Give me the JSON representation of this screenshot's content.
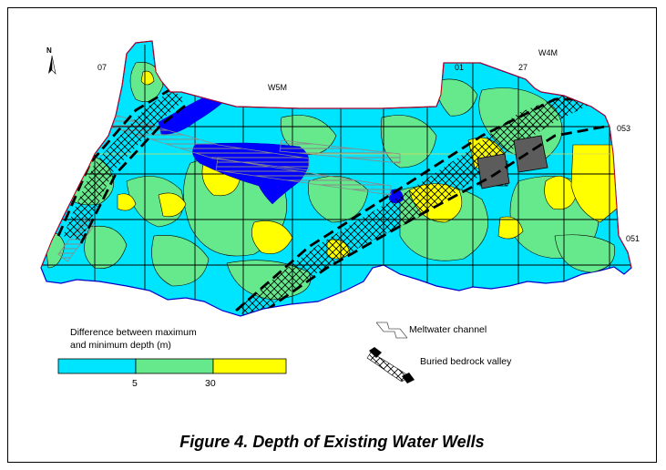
{
  "labels": {
    "north": "N",
    "range_w5m": "W5M",
    "range_w4m": "W4M",
    "range_07": "07",
    "range_01": "01",
    "range_27": "27",
    "twp_053": "053",
    "twp_051": "051"
  },
  "legend": {
    "depth_title_line1": "Difference between maximum",
    "depth_title_line2": "and minimum depth (m)",
    "tick_5": "5",
    "tick_30": "30",
    "classes": [
      {
        "color": "#00e5ff"
      },
      {
        "color": "#66e88c"
      },
      {
        "color": "#ffff00"
      }
    ],
    "meltwater": "Meltwater channel",
    "bedrock": "Buried bedrock valley"
  },
  "colors": {
    "cyan": "#00e5ff",
    "green": "#66e88c",
    "yellow": "#ffff00",
    "lake": "#0000ff",
    "boundary": "#cc0000",
    "grid_black": "#000000",
    "grid_yellow": "#ffff66",
    "dark_gray": "#666666"
  },
  "title": "Figure 4. Depth of Existing Water Wells"
}
